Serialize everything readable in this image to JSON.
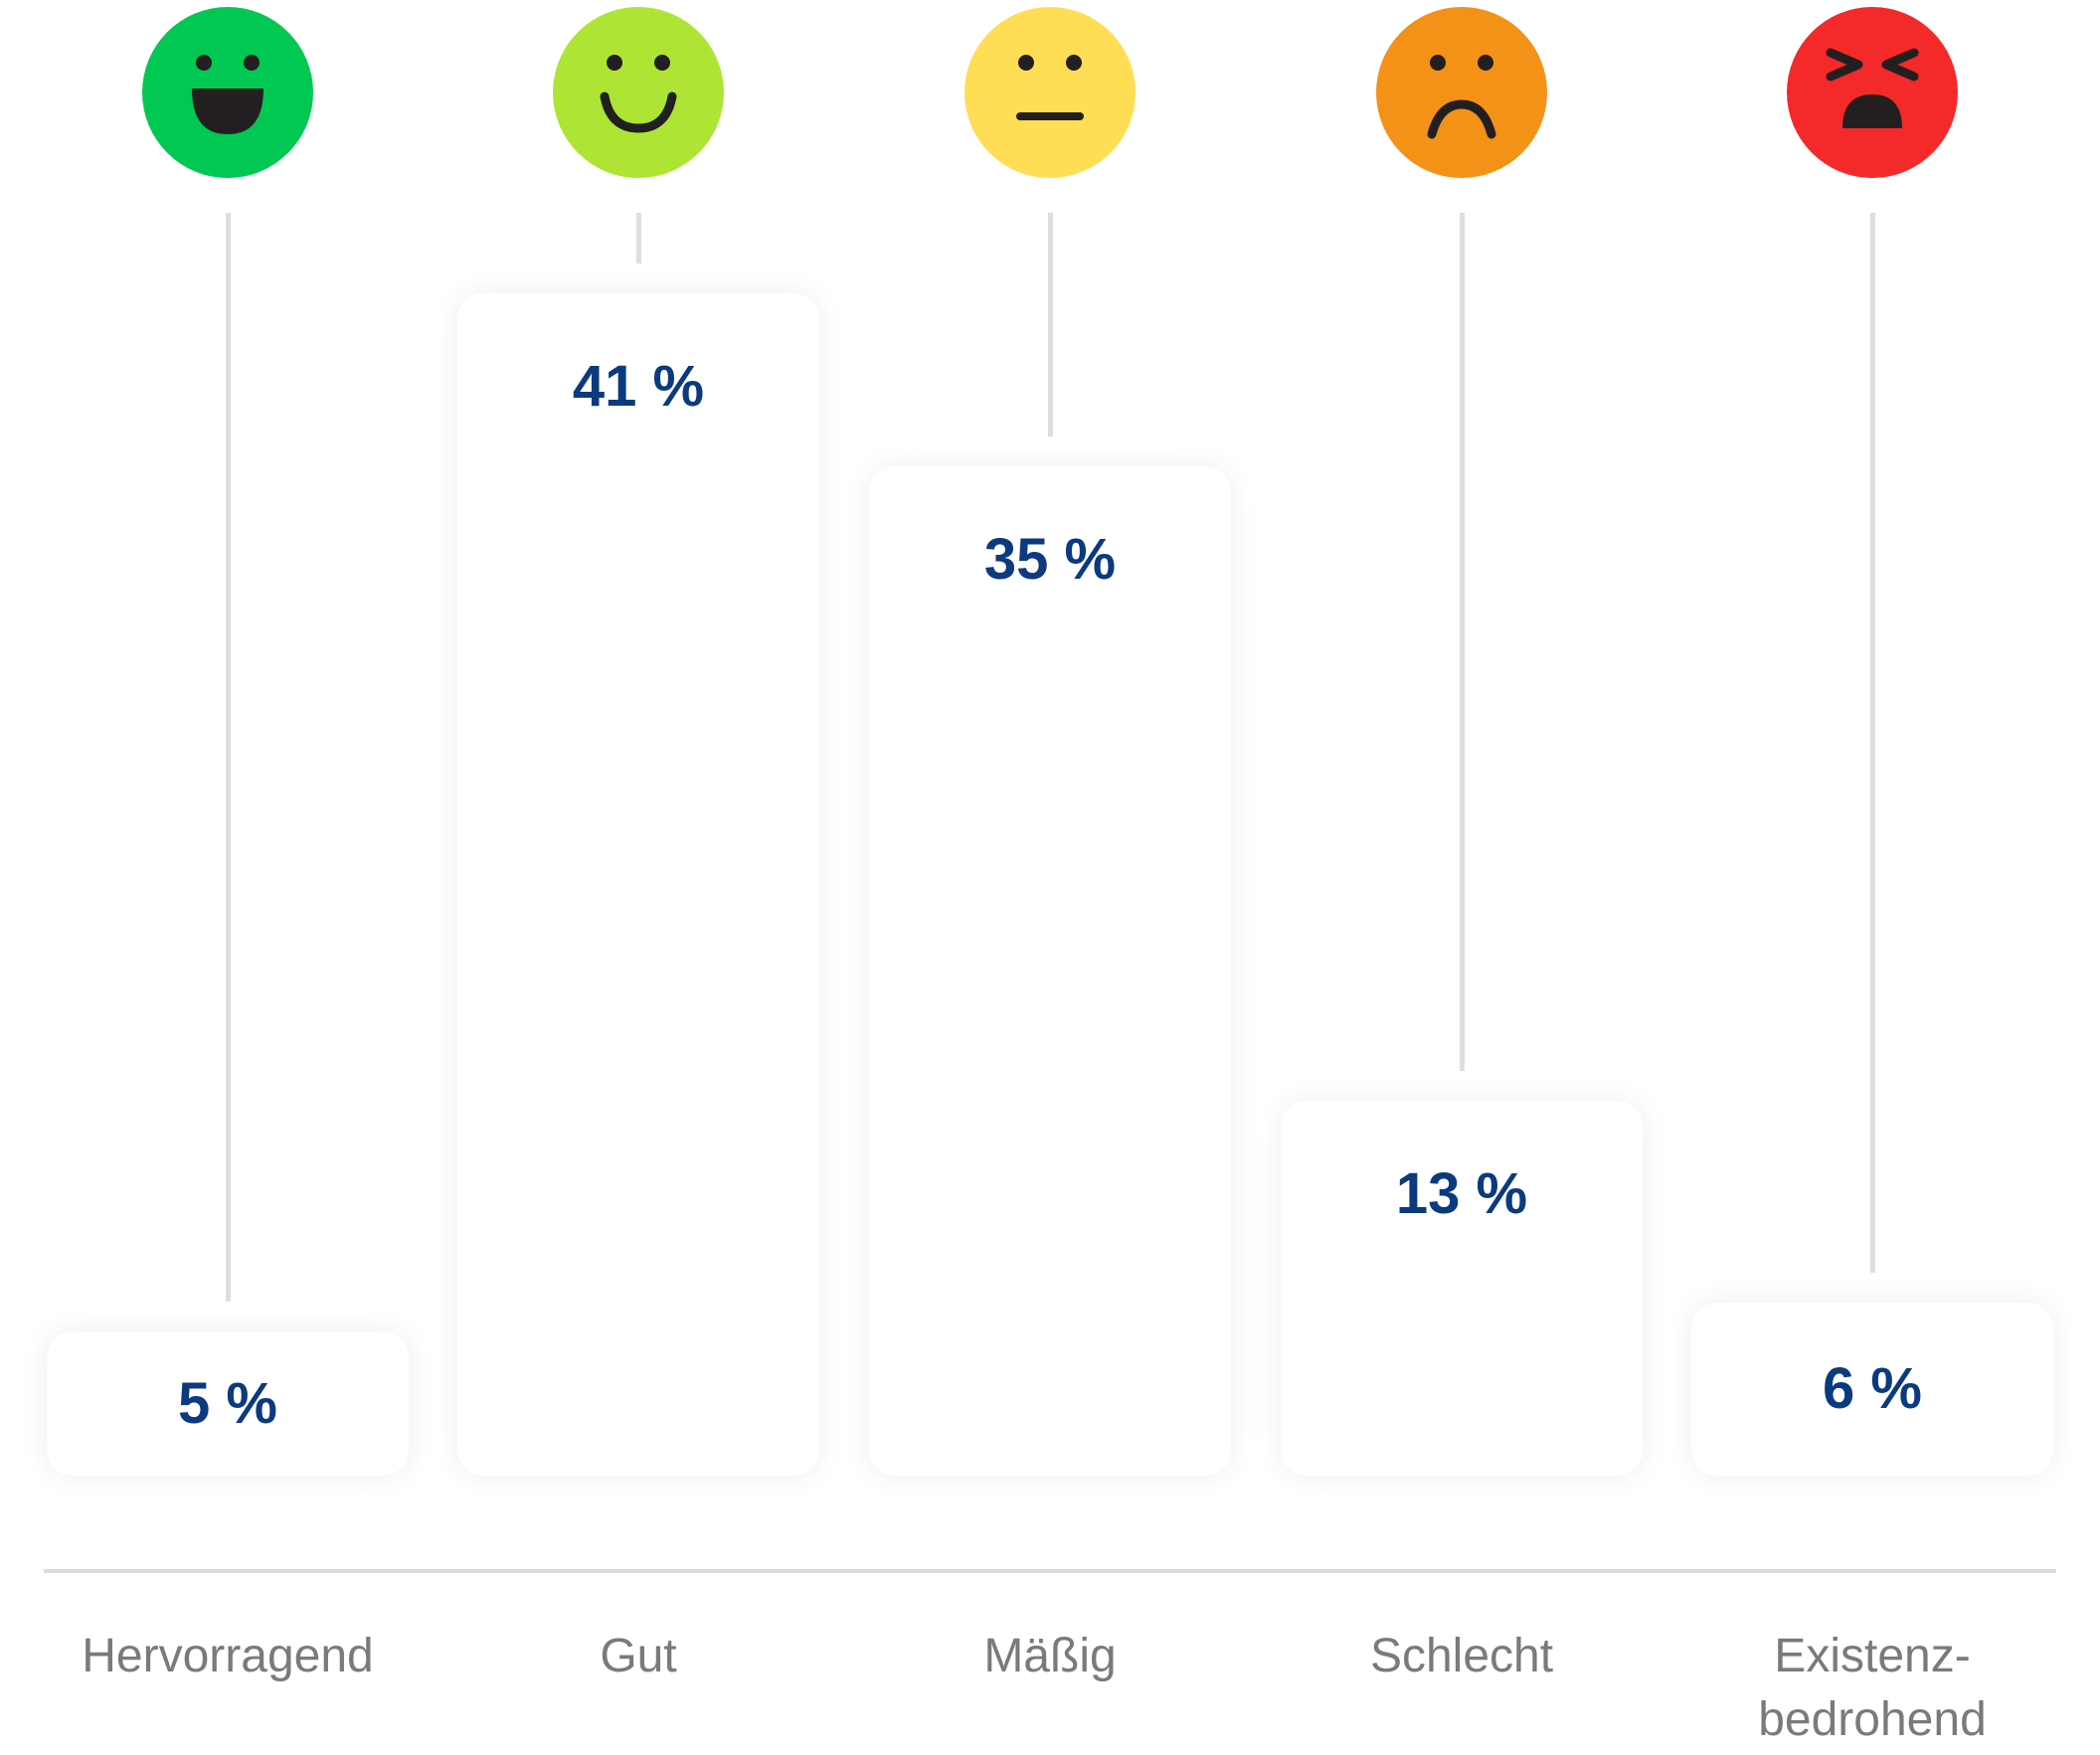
{
  "chart_data": {
    "type": "bar",
    "title": "",
    "xlabel": "",
    "ylabel": "",
    "unit": "%",
    "ylim": [
      0,
      41
    ],
    "grid": false,
    "categories": [
      "Hervorragend",
      "Gut",
      "Mäßig",
      "Schlecht",
      "Existenz-\nbedrohend"
    ],
    "category_lines": [
      [
        "Hervorragend"
      ],
      [
        "Gut"
      ],
      [
        "Mäßig"
      ],
      [
        "Schlecht"
      ],
      [
        "Existenz-",
        "bedrohend"
      ]
    ],
    "values": [
      5,
      41,
      35,
      13,
      6
    ],
    "value_labels": [
      "5 %",
      "41 %",
      "35 %",
      "13 %",
      "6 %"
    ],
    "icons": [
      "laughing-face-icon",
      "smiling-face-icon",
      "neutral-face-icon",
      "frowning-face-icon",
      "angry-face-icon"
    ],
    "colors": [
      "#00c853",
      "#aee535",
      "#ffdd55",
      "#f39217",
      "#f42929"
    ]
  }
}
